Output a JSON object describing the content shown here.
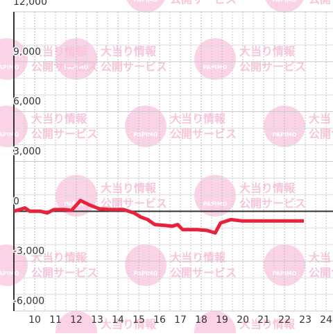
{
  "chart_data": {
    "type": "line",
    "x": [
      9.0,
      9.27,
      9.53,
      9.77,
      10.27,
      10.6,
      10.93,
      11.43,
      11.77,
      12.2,
      12.6,
      13.1,
      13.6,
      14.27,
      14.77,
      15.1,
      15.43,
      15.77,
      16.27,
      16.6,
      16.87,
      17.1,
      17.77,
      18.27,
      18.67,
      18.93,
      19.43,
      19.93,
      22.93
    ],
    "series": [
      {
        "color": "#e8223a",
        "values": [
          0,
          100,
          200,
          0,
          0,
          -100,
          100,
          100,
          50,
          650,
          400,
          150,
          100,
          100,
          -100,
          -350,
          -500,
          -800,
          -850,
          -900,
          -800,
          -1100,
          -1100,
          -1150,
          -1300,
          -700,
          -500,
          -580,
          -580
        ]
      }
    ],
    "xlim": [
      9,
      24.33
    ],
    "xticks": [
      10,
      11,
      12,
      13,
      14,
      15,
      16,
      17,
      18,
      19,
      20,
      21,
      22,
      23,
      24
    ],
    "ylim": [
      -6000,
      12000
    ],
    "yticks": [
      {
        "value": -6000,
        "label": "-6,000"
      },
      {
        "value": -3000,
        "label": "-3,000"
      },
      0,
      {
        "value": 3000,
        "label": "3,000"
      },
      {
        "value": 6000,
        "label": "6,000"
      },
      {
        "value": 9000,
        "label": "9,000"
      },
      {
        "value": 12000,
        "label": "12,000"
      }
    ],
    "grid": true
  },
  "watermark": {
    "logo": "PAPIMO",
    "lines": [
      "大当り情報",
      "公開サービス"
    ]
  }
}
